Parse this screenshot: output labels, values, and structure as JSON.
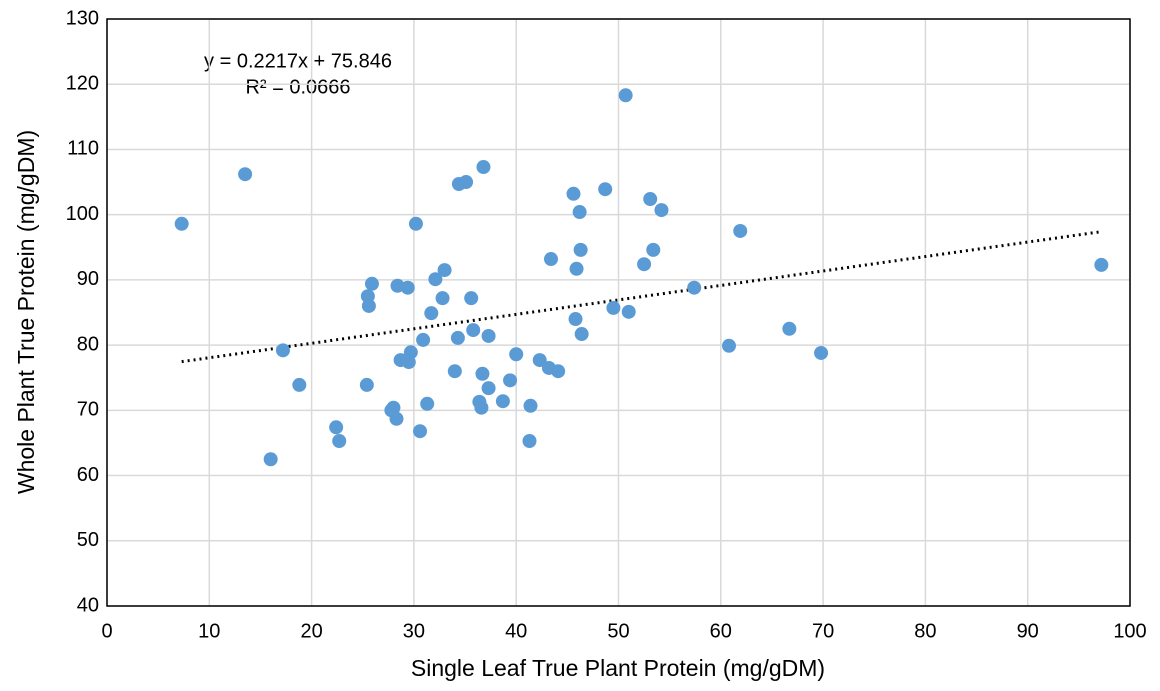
{
  "chart_data": {
    "type": "scatter",
    "x_label": "Single Leaf True Plant Protein (mg/gDM)",
    "y_label": "Whole Plant True Protein (mg/gDM)",
    "annotations": [
      "y = 0.2217x + 75.846",
      "R² = 0.0666"
    ],
    "xlim": [
      0,
      100
    ],
    "ylim": [
      40,
      130
    ],
    "xticks": [
      0,
      10,
      20,
      30,
      40,
      50,
      60,
      70,
      80,
      90,
      100
    ],
    "yticks": [
      40,
      50,
      60,
      70,
      80,
      90,
      100,
      110,
      120,
      130
    ],
    "grid": true,
    "trendline": {
      "slope": 0.2217,
      "intercept": 75.846,
      "x": [
        7.3,
        97.2
      ],
      "color": "#000000"
    },
    "series": [
      {
        "color": "#5b9bd5",
        "x": [
          7.3,
          13.5,
          16.0,
          17.2,
          18.8,
          22.4,
          22.7,
          25.4,
          25.5,
          25.6,
          25.9,
          27.8,
          28.0,
          28.3,
          28.4,
          28.7,
          29.4,
          29.5,
          29.7,
          30.2,
          30.6,
          30.9,
          31.3,
          31.7,
          32.1,
          32.8,
          33.0,
          34.0,
          34.3,
          34.4,
          35.1,
          35.6,
          35.8,
          36.4,
          36.6,
          36.7,
          36.8,
          37.3,
          37.3,
          38.7,
          39.4,
          40.0,
          41.3,
          41.4,
          42.3,
          43.2,
          43.4,
          44.1,
          45.6,
          45.8,
          45.9,
          46.2,
          46.3,
          46.4,
          48.7,
          49.5,
          50.7,
          51.0,
          52.5,
          53.1,
          53.4,
          54.2,
          57.4,
          60.8,
          61.9,
          66.7,
          69.8,
          97.2
        ],
        "values": [
          98.6,
          106.2,
          62.5,
          79.2,
          73.9,
          67.4,
          65.3,
          73.9,
          87.5,
          86.0,
          89.4,
          70.0,
          70.4,
          68.7,
          89.1,
          77.7,
          88.8,
          77.4,
          78.9,
          98.6,
          66.8,
          80.8,
          71.0,
          84.9,
          90.1,
          87.2,
          91.5,
          76.0,
          81.1,
          104.7,
          105.0,
          87.2,
          82.3,
          71.3,
          70.4,
          75.6,
          107.3,
          81.4,
          73.4,
          71.4,
          74.6,
          78.6,
          65.3,
          70.7,
          77.7,
          76.5,
          93.2,
          76.0,
          103.2,
          84.0,
          91.7,
          100.4,
          94.6,
          81.7,
          103.9,
          85.7,
          118.3,
          85.1,
          92.4,
          102.4,
          94.6,
          100.7,
          88.8,
          79.9,
          97.5,
          82.5,
          78.8,
          92.3
        ]
      }
    ]
  }
}
